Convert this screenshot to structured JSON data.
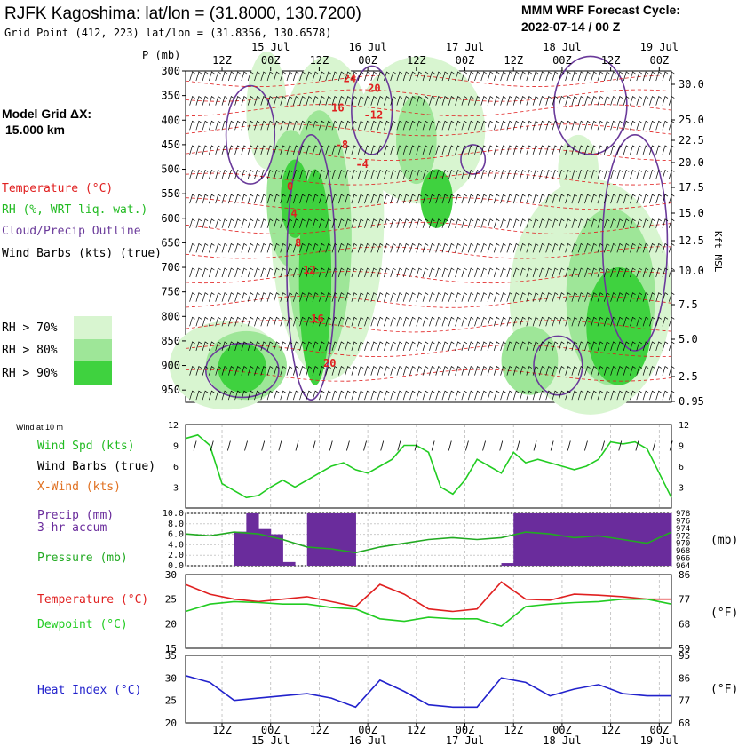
{
  "header": {
    "title": "RJFK Kagoshima:  lat/lon = (31.8000, 130.7200)",
    "subtitle": "Grid Point (412, 223) lat/lon = (31.8356, 130.6578)",
    "cycle_label": "MMM WRF Forecast Cycle:",
    "cycle_value": "2022-07-14 / 00  Z"
  },
  "sidebar": {
    "grid_label": "Model Grid ΔX:",
    "grid_value": "15.000 km",
    "legend_temperature": "Temperature (°C)",
    "legend_rh": "RH (%, WRT liq. wat.)",
    "legend_cloud": "Cloud/Precip Outline",
    "legend_wind": "Wind Barbs (kts) (true)",
    "rh_levels": [
      "RH > 70%",
      "RH > 80%",
      "RH > 90%"
    ]
  },
  "colors": {
    "rh70": "#d8f5d0",
    "rh80": "#9ee698",
    "rh90": "#3fd23f",
    "temperature": "#e02020",
    "cloud": "#6a3a9a",
    "wind_line": "#22cc22",
    "precip": "#6a2c9c",
    "pressure": "#22aa22",
    "dewpoint": "#22cc22",
    "heat_index": "#2222cc"
  },
  "chart_data": [
    {
      "type": "heatmap",
      "name": "cross-section",
      "xlabel_top": [
        "12Z",
        "00Z",
        "12Z",
        "00Z",
        "12Z",
        "00Z",
        "12Z",
        "00Z",
        "12Z",
        "00Z"
      ],
      "dates": [
        "15 Jul",
        "16 Jul",
        "17 Jul",
        "18 Jul",
        "19 Jul"
      ],
      "ylabel": "P (mb)",
      "pressure_levels": [
        300,
        350,
        400,
        450,
        500,
        550,
        600,
        650,
        700,
        750,
        800,
        850,
        900,
        950
      ],
      "height_label": "Kft MSL",
      "height_ticks": [
        "30.0",
        "25.0",
        "22.5",
        "20.0",
        "17.5",
        "15.0",
        "12.5",
        "10.0",
        "7.5",
        "5.0",
        "2.5",
        "0.95"
      ],
      "x_hours": [
        0,
        120
      ],
      "temperature_labels": [
        {
          "value": "24",
          "t": 39,
          "p": 315
        },
        {
          "value": "20",
          "t": 45,
          "p": 335
        },
        {
          "value": "16",
          "t": 36,
          "p": 375
        },
        {
          "value": "-12",
          "t": 44,
          "p": 390
        },
        {
          "value": "-8",
          "t": 37,
          "p": 450
        },
        {
          "value": "-4",
          "t": 42,
          "p": 490
        },
        {
          "value": "0",
          "t": 25,
          "p": 535
        },
        {
          "value": "4",
          "t": 26,
          "p": 590
        },
        {
          "value": "8",
          "t": 27,
          "p": 650
        },
        {
          "value": "12",
          "t": 29,
          "p": 705
        },
        {
          "value": "16",
          "t": 31,
          "p": 805
        },
        {
          "value": "20",
          "t": 34,
          "p": 895
        }
      ]
    },
    {
      "type": "line",
      "name": "wind",
      "title": "Wind at 10 m",
      "label_speed": "Wind Spd (kts)",
      "label_barbs": "Wind Barbs (true)",
      "label_xwind": "X-Wind (kts)",
      "yticks": [
        3,
        6,
        9,
        12
      ],
      "ylim": [
        0,
        12
      ],
      "x": [
        0,
        3,
        6,
        9,
        12,
        15,
        18,
        21,
        24,
        27,
        30,
        33,
        36,
        39,
        42,
        45,
        48,
        51,
        54,
        57,
        60,
        63,
        66,
        69,
        72,
        75,
        78,
        81,
        84,
        87,
        90,
        93,
        96,
        99,
        102,
        105,
        108,
        111,
        114,
        117,
        120
      ],
      "speed": [
        10,
        10.5,
        9,
        3.5,
        2.5,
        1.5,
        1.8,
        3,
        4,
        3,
        4,
        5,
        6,
        6.5,
        5.5,
        5,
        6,
        7,
        9,
        9,
        8,
        3,
        2,
        4,
        7,
        6,
        5,
        8,
        6.5,
        7,
        6.5,
        6,
        5.5,
        6,
        7,
        9.5,
        9.2,
        9.5,
        8.5,
        5,
        1.5
      ]
    },
    {
      "type": "bar",
      "name": "precip-pressure",
      "label_precip": "Precip (mm)",
      "label_accum": "3-hr accum",
      "label_pressure": "Pressure (mb)",
      "unit_right": "(mb)",
      "yticks_left": [
        "0.0",
        "2.0",
        "4.0",
        "6.0",
        "8.0",
        "10.0"
      ],
      "yticks_right": [
        "964",
        "966",
        "968",
        "970",
        "972",
        "974",
        "976",
        "978"
      ],
      "ylim_left": [
        0,
        10
      ],
      "ylim_right": [
        964,
        978
      ],
      "precip_x": [
        12,
        15,
        18,
        21,
        24,
        27,
        30,
        33,
        36,
        39,
        42,
        45,
        78,
        81,
        84,
        87,
        90,
        93,
        96,
        99,
        102,
        105,
        108,
        111,
        114,
        117
      ],
      "precip_values": [
        6.5,
        10,
        7,
        6,
        0.7,
        0,
        10,
        10,
        10,
        10,
        0,
        0,
        0.5,
        10,
        10,
        10,
        10,
        10,
        10,
        10,
        10,
        10,
        10,
        10,
        10,
        10
      ],
      "pressure_x": [
        0,
        6,
        12,
        18,
        24,
        30,
        36,
        42,
        48,
        54,
        60,
        66,
        72,
        78,
        84,
        90,
        96,
        102,
        108,
        114,
        120
      ],
      "pressure_values": [
        972.5,
        972,
        973,
        972.5,
        971,
        969,
        968.5,
        967.5,
        969,
        970,
        971,
        971.5,
        971,
        971.5,
        973,
        972.5,
        971.5,
        972,
        971,
        970,
        973
      ]
    },
    {
      "type": "line",
      "name": "temperature-dewpoint",
      "label_temperature": "Temperature (°C)",
      "label_dewpoint": "Dewpoint (°C)",
      "yticks_left": [
        "15",
        "20",
        "25",
        "30"
      ],
      "yticks_right": [
        "59",
        "68",
        "77",
        "86"
      ],
      "unit_right": "(°F)",
      "ylim": [
        15,
        30
      ],
      "x": [
        0,
        6,
        12,
        18,
        24,
        30,
        36,
        42,
        48,
        54,
        60,
        66,
        72,
        78,
        84,
        90,
        96,
        102,
        108,
        114,
        120
      ],
      "temperature": [
        28,
        26,
        25,
        24.5,
        25,
        25.5,
        24.5,
        23.5,
        28,
        26,
        23,
        22.5,
        23,
        28.5,
        25,
        24.8,
        26,
        25.8,
        25.5,
        25,
        25
      ],
      "dewpoint": [
        22.5,
        24,
        24.5,
        24.3,
        24,
        24,
        23.3,
        23,
        21,
        20.5,
        21.3,
        21,
        21,
        19.5,
        23.5,
        24,
        24.3,
        24.5,
        25,
        25,
        24
      ]
    },
    {
      "type": "line",
      "name": "heat-index",
      "label_heat": "Heat Index (°C)",
      "yticks_left": [
        "20",
        "25",
        "30",
        "35"
      ],
      "yticks_right": [
        "68",
        "77",
        "86",
        "95"
      ],
      "unit_right": "(°F)",
      "ylim": [
        20,
        35
      ],
      "xlabel_bottom": [
        "12Z",
        "00Z",
        "12Z",
        "00Z",
        "12Z",
        "00Z",
        "12Z",
        "00Z",
        "12Z",
        "00Z"
      ],
      "x": [
        0,
        6,
        12,
        18,
        24,
        30,
        36,
        42,
        48,
        54,
        60,
        66,
        72,
        78,
        84,
        90,
        96,
        102,
        108,
        114,
        120
      ],
      "heat_index": [
        30.5,
        29,
        25,
        25.5,
        26,
        26.5,
        25.5,
        23.5,
        29.5,
        27,
        24,
        23.5,
        23.5,
        30,
        29,
        26,
        27.5,
        28.5,
        26.5,
        26,
        26
      ]
    }
  ]
}
